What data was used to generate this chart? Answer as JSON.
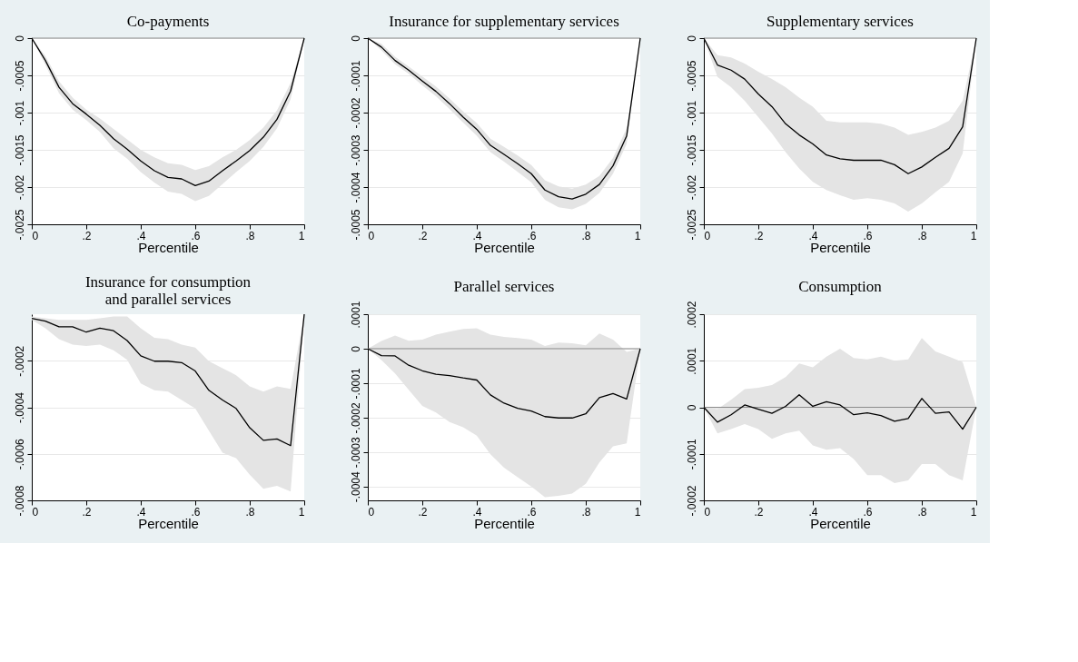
{
  "chart_data": [
    {
      "type": "line",
      "title": "Co-payments",
      "xlabel": "Percentile",
      "grid": "y",
      "xlim": [
        0,
        1
      ],
      "ylim": [
        -0.0025,
        0
      ],
      "xticks": [
        0,
        {
          "value": 0.2,
          "label": ".2"
        },
        {
          "value": 0.4,
          "label": ".4"
        },
        {
          "value": 0.6,
          "label": ".6"
        },
        {
          "value": 0.8,
          "label": ".8"
        },
        1
      ],
      "yticks": [
        {
          "value": -0.0025,
          "label": "-.0025"
        },
        {
          "value": -0.002,
          "label": "-.002"
        },
        {
          "value": -0.0015,
          "label": "-.0015"
        },
        {
          "value": -0.001,
          "label": "-.001"
        },
        {
          "value": -0.0005,
          "label": "-.0005"
        },
        0
      ],
      "ref_lines": [
        {
          "axis": "y",
          "value": 0,
          "color": "#8c8c8c"
        }
      ],
      "x": [
        0,
        0.05,
        0.1,
        0.15,
        0.2,
        0.25,
        0.3,
        0.35,
        0.4,
        0.45,
        0.5,
        0.55,
        0.6,
        0.65,
        0.7,
        0.75,
        0.8,
        0.85,
        0.9,
        0.95,
        1
      ],
      "series": [
        {
          "color": "#000000",
          "values": [
            0,
            -0.0003,
            -0.00066,
            -0.00088,
            -0.00102,
            -0.00117,
            -0.00135,
            -0.00149,
            -0.00165,
            -0.00178,
            -0.00187,
            -0.00189,
            -0.00198,
            -0.00192,
            -0.00178,
            -0.00165,
            -0.00151,
            -0.00133,
            -0.00109,
            -0.00071,
            0
          ],
          "upper": [
            0,
            -0.00024,
            -0.00058,
            -0.0008,
            -0.00096,
            -0.00108,
            -0.00122,
            -0.00136,
            -0.0015,
            -0.0016,
            -0.00168,
            -0.0017,
            -0.00177,
            -0.00172,
            -0.0016,
            -0.0015,
            -0.00137,
            -0.0012,
            -0.00097,
            -0.0006,
            0
          ],
          "lower": [
            0,
            -0.00036,
            -0.00074,
            -0.00096,
            -0.0011,
            -0.00126,
            -0.00148,
            -0.00162,
            -0.0018,
            -0.00194,
            -0.00206,
            -0.00209,
            -0.00219,
            -0.00212,
            -0.00196,
            -0.0018,
            -0.00165,
            -0.00146,
            -0.00121,
            -0.00082,
            0
          ]
        }
      ]
    },
    {
      "type": "line",
      "title": "Insurance for supplementary services",
      "xlabel": "Percentile",
      "grid": "y",
      "xlim": [
        0,
        1
      ],
      "ylim": [
        -0.0005,
        0
      ],
      "xticks": [
        0,
        {
          "value": 0.2,
          "label": ".2"
        },
        {
          "value": 0.4,
          "label": ".4"
        },
        {
          "value": 0.6,
          "label": ".6"
        },
        {
          "value": 0.8,
          "label": ".8"
        },
        1
      ],
      "yticks": [
        {
          "value": -0.0005,
          "label": "-.0005"
        },
        {
          "value": -0.0004,
          "label": "-.0004"
        },
        {
          "value": -0.0003,
          "label": "-.0003"
        },
        {
          "value": -0.0002,
          "label": "-.0002"
        },
        {
          "value": -0.0001,
          "label": "-.0001"
        },
        0
      ],
      "ref_lines": [
        {
          "axis": "y",
          "value": 0,
          "color": "#8c8c8c"
        }
      ],
      "x": [
        0,
        0.05,
        0.1,
        0.15,
        0.2,
        0.25,
        0.3,
        0.35,
        0.4,
        0.45,
        0.5,
        0.55,
        0.6,
        0.65,
        0.7,
        0.75,
        0.8,
        0.85,
        0.9,
        0.95,
        1
      ],
      "series": [
        {
          "color": "#000000",
          "values": [
            0,
            -2.4e-05,
            -6e-05,
            -8.6e-05,
            -0.000115,
            -0.000143,
            -0.000176,
            -0.000212,
            -0.000245,
            -0.000288,
            -0.000312,
            -0.000337,
            -0.000364,
            -0.000408,
            -0.000426,
            -0.000432,
            -0.000419,
            -0.000393,
            -0.000343,
            -0.000263,
            0
          ],
          "upper": [
            0,
            -1.5e-05,
            -5e-05,
            -7.6e-05,
            -0.000103,
            -0.00013,
            -0.000162,
            -0.000197,
            -0.000228,
            -0.00027,
            -0.000292,
            -0.000315,
            -0.000341,
            -0.000382,
            -0.000398,
            -0.000404,
            -0.000393,
            -0.00037,
            -0.000322,
            -0.000242,
            0
          ],
          "lower": [
            0,
            -3.3e-05,
            -7e-05,
            -9.6e-05,
            -0.000127,
            -0.000156,
            -0.00019,
            -0.000227,
            -0.000262,
            -0.000306,
            -0.000332,
            -0.000359,
            -0.000387,
            -0.000434,
            -0.000454,
            -0.00046,
            -0.000445,
            -0.000416,
            -0.000364,
            -0.000284,
            0
          ]
        }
      ]
    },
    {
      "type": "line",
      "title": "Supplementary services",
      "xlabel": "Percentile",
      "grid": "y",
      "xlim": [
        0,
        1
      ],
      "ylim": [
        -0.0025,
        0
      ],
      "xticks": [
        0,
        {
          "value": 0.2,
          "label": ".2"
        },
        {
          "value": 0.4,
          "label": ".4"
        },
        {
          "value": 0.6,
          "label": ".6"
        },
        {
          "value": 0.8,
          "label": ".8"
        },
        1
      ],
      "yticks": [
        {
          "value": -0.0025,
          "label": "-.0025"
        },
        {
          "value": -0.002,
          "label": "-.002"
        },
        {
          "value": -0.0015,
          "label": "-.0015"
        },
        {
          "value": -0.001,
          "label": "-.001"
        },
        {
          "value": -0.0005,
          "label": "-.0005"
        },
        0
      ],
      "ref_lines": [
        {
          "axis": "y",
          "value": 0,
          "color": "#8c8c8c"
        }
      ],
      "x": [
        0,
        0.05,
        0.1,
        0.15,
        0.2,
        0.25,
        0.3,
        0.35,
        0.4,
        0.45,
        0.5,
        0.55,
        0.6,
        0.65,
        0.7,
        0.75,
        0.8,
        0.85,
        0.9,
        0.95,
        1
      ],
      "series": [
        {
          "color": "#000000",
          "values": [
            0,
            -0.00036,
            -0.00043,
            -0.00055,
            -0.00075,
            -0.00092,
            -0.00115,
            -0.0013,
            -0.00142,
            -0.00157,
            -0.00162,
            -0.00164,
            -0.00164,
            -0.00164,
            -0.0017,
            -0.00182,
            -0.00173,
            -0.0016,
            -0.00148,
            -0.00119,
            0
          ],
          "upper": [
            0,
            -0.00023,
            -0.00026,
            -0.00034,
            -0.00045,
            -0.00055,
            -0.00066,
            -0.0008,
            -0.00092,
            -0.00111,
            -0.00113,
            -0.00113,
            -0.00113,
            -0.00115,
            -0.0012,
            -0.0013,
            -0.00126,
            -0.0012,
            -0.00111,
            -0.00084,
            0
          ],
          "lower": [
            0,
            -0.00052,
            -0.00066,
            -0.00084,
            -0.00106,
            -0.00128,
            -0.00153,
            -0.00175,
            -0.00193,
            -0.00204,
            -0.00211,
            -0.00217,
            -0.00215,
            -0.00217,
            -0.00222,
            -0.00233,
            -0.00222,
            -0.00207,
            -0.00193,
            -0.00155,
            0
          ]
        }
      ]
    },
    {
      "type": "line",
      "title": "Insurance for consumption\nand parallel services",
      "xlabel": "Percentile",
      "grid": "y",
      "xlim": [
        0,
        1
      ],
      "ylim": [
        -0.0008,
        0
      ],
      "xticks": [
        0,
        {
          "value": 0.2,
          "label": ".2"
        },
        {
          "value": 0.4,
          "label": ".4"
        },
        {
          "value": 0.6,
          "label": ".6"
        },
        {
          "value": 0.8,
          "label": ".8"
        },
        1
      ],
      "yticks": [
        {
          "value": -0.0008,
          "label": "-.0008"
        },
        {
          "value": -0.0006,
          "label": "-.0006"
        },
        {
          "value": -0.0004,
          "label": "-.0004"
        },
        {
          "value": -0.0002,
          "label": "-.0002"
        }
      ],
      "x": [
        0,
        0.05,
        0.1,
        0.15,
        0.2,
        0.25,
        0.3,
        0.35,
        0.4,
        0.45,
        0.5,
        0.55,
        0.6,
        0.65,
        0.7,
        0.75,
        0.8,
        0.85,
        0.9,
        0.95,
        1
      ],
      "series": [
        {
          "color": "#000000",
          "values": [
            -1.8e-05,
            -3e-05,
            -5.4e-05,
            -5.4e-05,
            -7.7e-05,
            -6e-05,
            -7.1e-05,
            -0.000113,
            -0.000179,
            -0.000202,
            -0.000202,
            -0.000208,
            -0.000244,
            -0.000327,
            -0.000369,
            -0.000405,
            -0.000488,
            -0.000542,
            -0.000536,
            -0.000565,
            0
          ],
          "upper": [
            -1e-05,
            -1.8e-05,
            -2.4e-05,
            -2.4e-05,
            -2.4e-05,
            -1.8e-05,
            -1e-05,
            -1e-05,
            -6e-05,
            -0.000101,
            -0.000107,
            -0.000131,
            -0.000143,
            -0.000202,
            -0.000232,
            -0.000262,
            -0.00031,
            -0.000333,
            -0.00031,
            -0.000321,
            0
          ],
          "lower": [
            -2.4e-05,
            -6e-05,
            -0.000107,
            -0.000131,
            -0.000137,
            -0.000131,
            -0.000155,
            -0.000196,
            -0.000298,
            -0.000327,
            -0.000333,
            -0.000369,
            -0.000405,
            -0.0005,
            -0.000595,
            -0.000619,
            -0.00069,
            -0.00075,
            -0.000738,
            -0.000762,
            0
          ]
        }
      ]
    },
    {
      "type": "line",
      "title": "Parallel services",
      "xlabel": "Percentile",
      "grid": "y",
      "xlim": [
        0,
        1
      ],
      "ylim": [
        -0.00044,
        0.0001
      ],
      "xticks": [
        0,
        {
          "value": 0.2,
          "label": ".2"
        },
        {
          "value": 0.4,
          "label": ".4"
        },
        {
          "value": 0.6,
          "label": ".6"
        },
        {
          "value": 0.8,
          "label": ".8"
        },
        1
      ],
      "yticks": [
        {
          "value": -0.0004,
          "label": "-.0004"
        },
        {
          "value": -0.0003,
          "label": "-.0003"
        },
        {
          "value": -0.0002,
          "label": "-.0002"
        },
        {
          "value": -0.0001,
          "label": "-.0001"
        },
        0,
        {
          "value": 0.0001,
          "label": ".0001"
        }
      ],
      "ref_lines": [
        {
          "axis": "y",
          "value": 0,
          "color": "#8c8c8c"
        }
      ],
      "x": [
        0,
        0.05,
        0.1,
        0.15,
        0.2,
        0.25,
        0.3,
        0.35,
        0.4,
        0.45,
        0.5,
        0.55,
        0.6,
        0.65,
        0.7,
        0.75,
        0.8,
        0.85,
        0.9,
        0.95,
        1
      ],
      "series": [
        {
          "color": "#000000",
          "values": [
            0,
            -2e-05,
            -2.1e-05,
            -4.8e-05,
            -6.4e-05,
            -7.4e-05,
            -7.8e-05,
            -8.5e-05,
            -9.1e-05,
            -0.000134,
            -0.000158,
            -0.000173,
            -0.000181,
            -0.000197,
            -0.000201,
            -0.000201,
            -0.000189,
            -0.000142,
            -0.00013,
            -0.000146,
            0
          ],
          "upper": [
            0,
            2.2e-05,
            3.8e-05,
            2.3e-05,
            2.6e-05,
            4.1e-05,
            4.9e-05,
            5.7e-05,
            5.9e-05,
            4.1e-05,
            3.4e-05,
            3.1e-05,
            2.6e-05,
            8e-06,
            1.8e-05,
            1.6e-05,
            1e-05,
            4.4e-05,
            2.6e-05,
            -9e-06,
            0
          ],
          "lower": [
            0,
            -3.3e-05,
            -7.2e-05,
            -0.000119,
            -0.000166,
            -0.000185,
            -0.000213,
            -0.000228,
            -0.000252,
            -0.000306,
            -0.000345,
            -0.000373,
            -0.0004,
            -0.000431,
            -0.000427,
            -0.00042,
            -0.000392,
            -0.00033,
            -0.000283,
            -0.000275,
            0
          ]
        }
      ]
    },
    {
      "type": "line",
      "title": "Consumption",
      "xlabel": "Percentile",
      "grid": "y",
      "xlim": [
        0,
        1
      ],
      "ylim": [
        -0.0002,
        0.0002
      ],
      "xticks": [
        0,
        {
          "value": 0.2,
          "label": ".2"
        },
        {
          "value": 0.4,
          "label": ".4"
        },
        {
          "value": 0.6,
          "label": ".6"
        },
        {
          "value": 0.8,
          "label": ".8"
        },
        1
      ],
      "yticks": [
        {
          "value": -0.0002,
          "label": "-.0002"
        },
        {
          "value": -0.0001,
          "label": "-.0001"
        },
        0,
        {
          "value": 0.0001,
          "label": ".0001"
        },
        {
          "value": 0.0002,
          "label": ".0002"
        }
      ],
      "ref_lines": [
        {
          "axis": "y",
          "value": 0,
          "color": "#8c8c8c"
        }
      ],
      "x": [
        0,
        0.05,
        0.1,
        0.15,
        0.2,
        0.25,
        0.3,
        0.35,
        0.4,
        0.45,
        0.5,
        0.55,
        0.6,
        0.65,
        0.7,
        0.75,
        0.8,
        0.85,
        0.9,
        0.95,
        1
      ],
      "series": [
        {
          "color": "#000000",
          "values": [
            0,
            -3.2e-05,
            -1.6e-05,
            5e-06,
            -4e-06,
            -1.3e-05,
            2e-06,
            2.7e-05,
            2e-06,
            1.2e-05,
            5e-06,
            -1.6e-05,
            -1.2e-05,
            -1.8e-05,
            -3e-05,
            -2.4e-05,
            1.9e-05,
            -1.3e-05,
            -1e-05,
            -4.7e-05,
            0
          ],
          "upper": [
            0,
            -4e-06,
            1.6e-05,
            3.9e-05,
            4.2e-05,
            4.8e-05,
            6.5e-05,
            9.4e-05,
            8.6e-05,
            0.000109,
            0.000126,
            0.000106,
            0.000103,
            0.000109,
            0.0001,
            0.000103,
            0.000149,
            0.00012,
            0.000109,
            9.7e-05,
            0
          ],
          "lower": [
            0,
            -5.6e-05,
            -4.7e-05,
            -3.6e-05,
            -4.7e-05,
            -6.8e-05,
            -5.6e-05,
            -5e-05,
            -8.2e-05,
            -9.1e-05,
            -8.8e-05,
            -0.000111,
            -0.000146,
            -0.000146,
            -0.000163,
            -0.000157,
            -0.000122,
            -0.000122,
            -0.000146,
            -0.000157,
            0
          ]
        }
      ]
    }
  ]
}
